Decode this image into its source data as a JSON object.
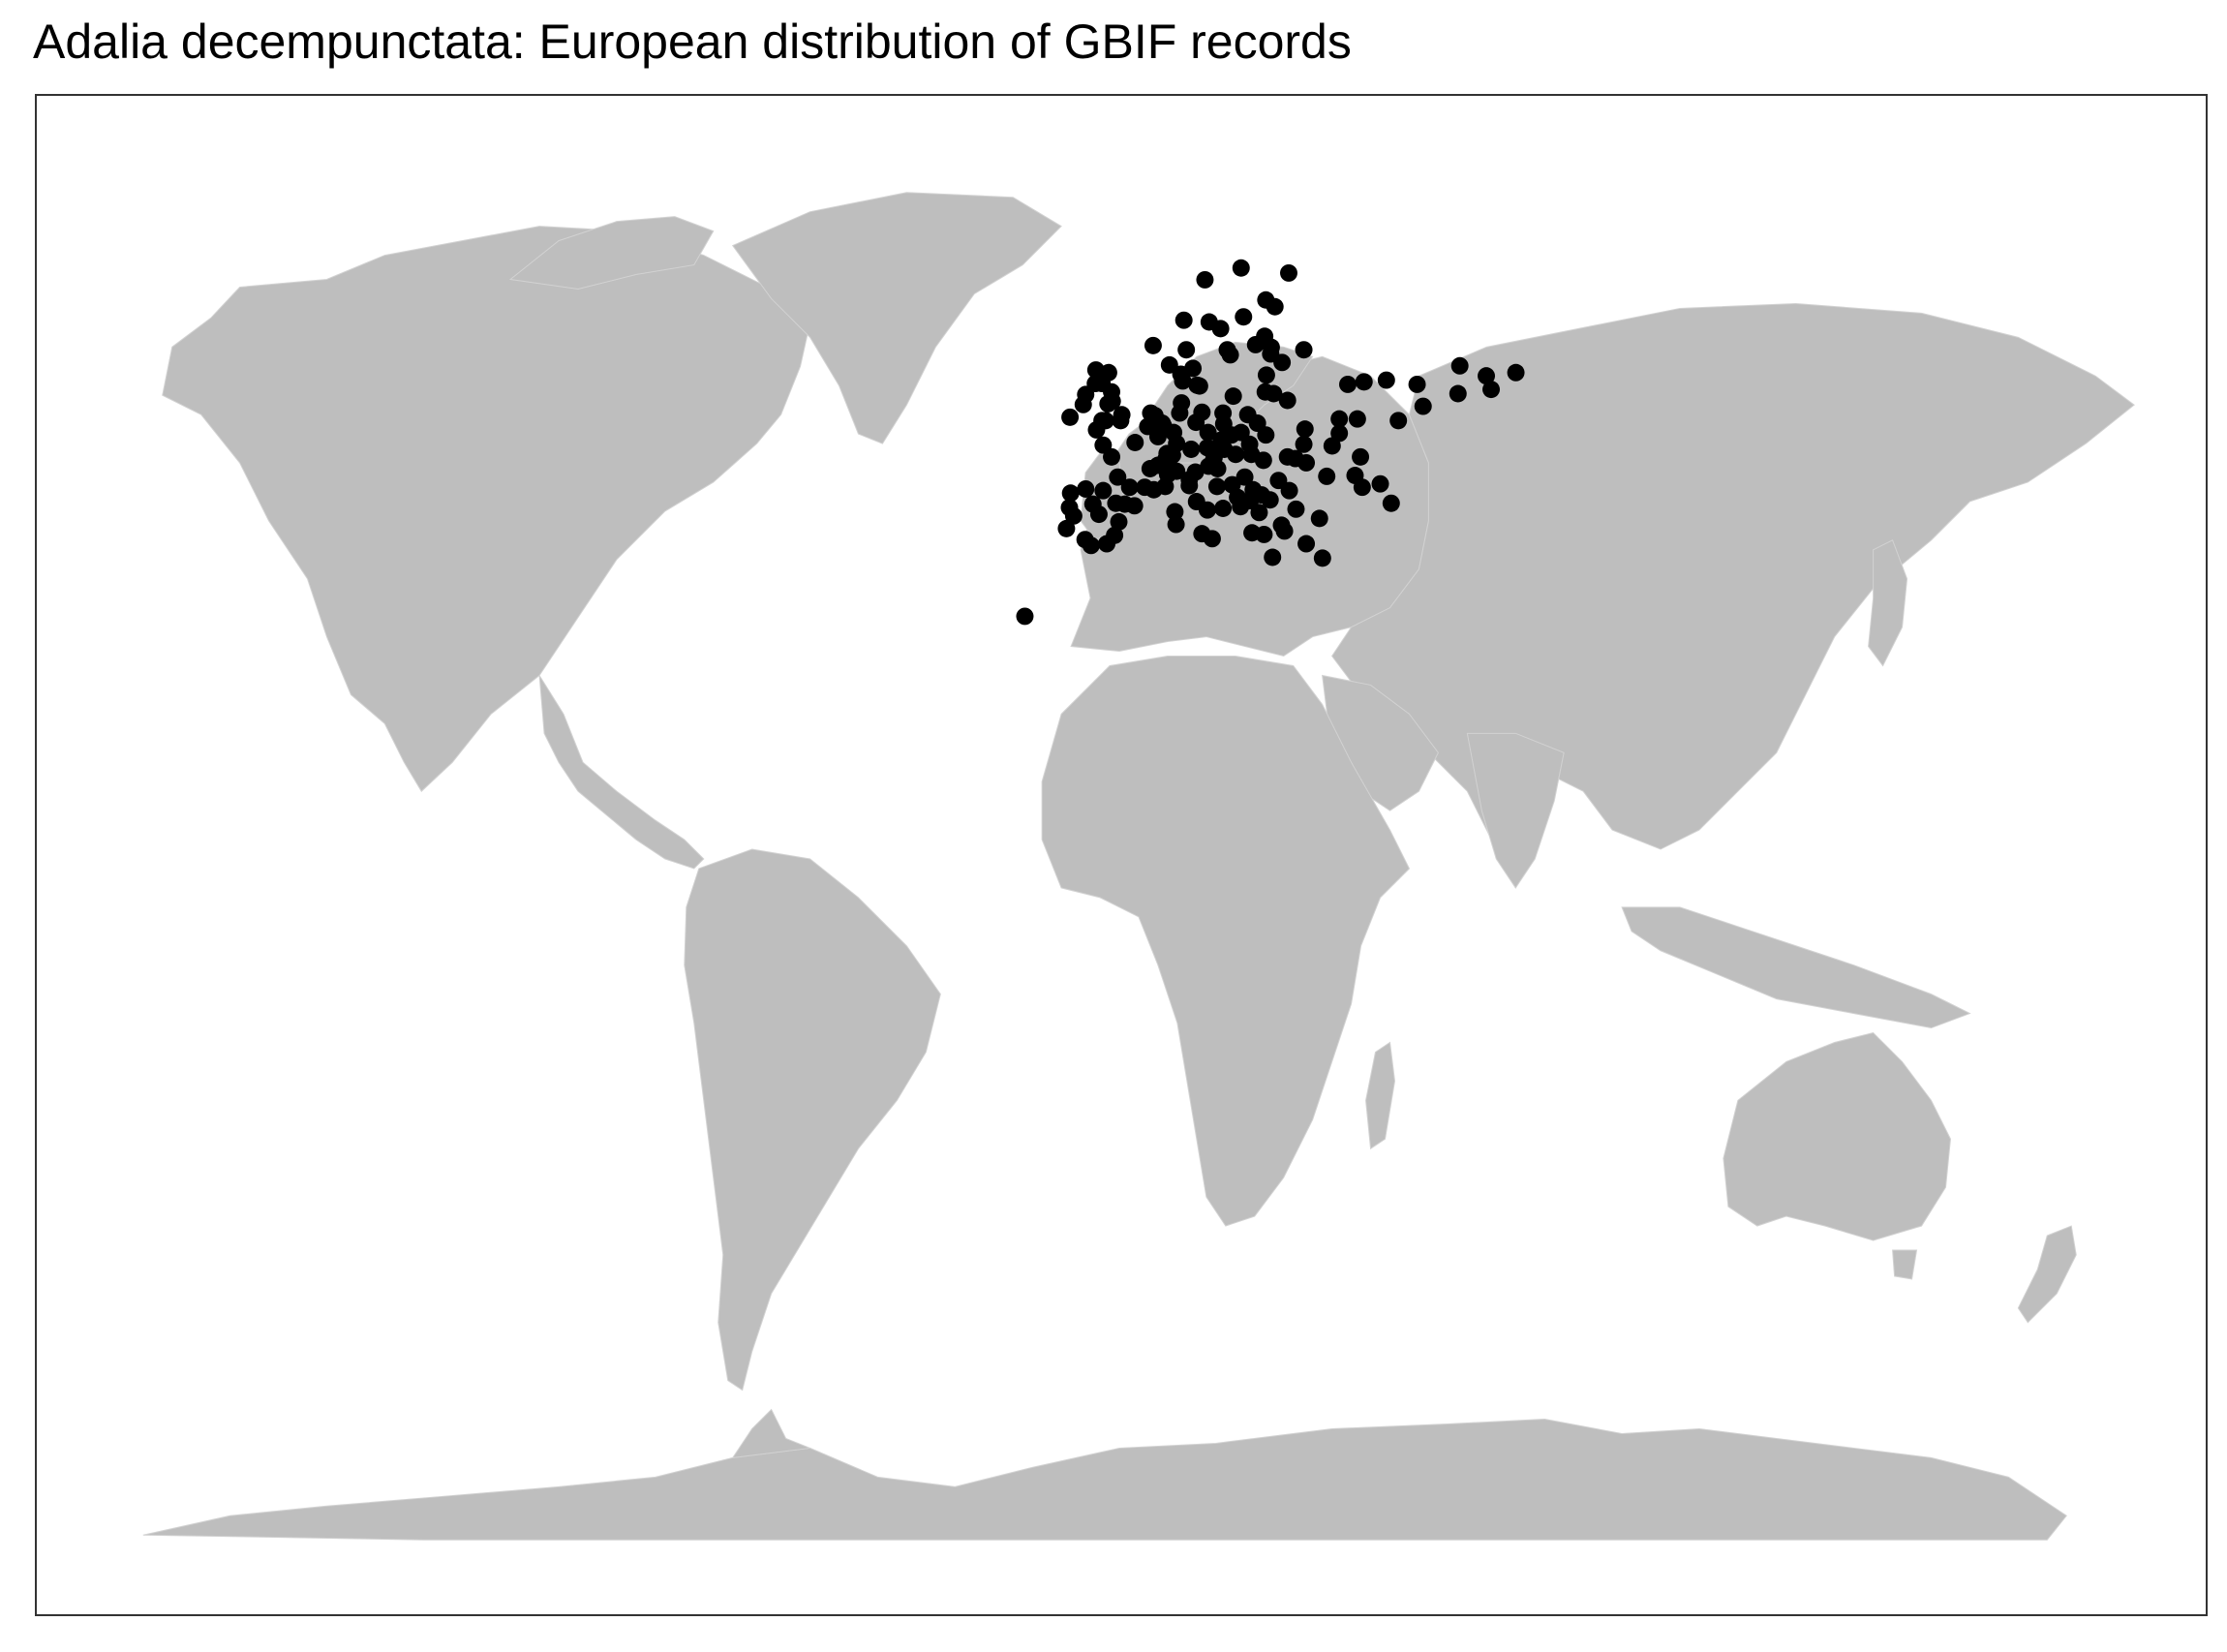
{
  "title": "Adalia decempunctata: European distribution of GBIF records",
  "map": {
    "projection": "equirectangular",
    "extent": {
      "lon": [
        -180,
        180
      ],
      "lat": [
        -90,
        90
      ]
    },
    "land_color": "#bebebe",
    "point_color": "#000000",
    "background": "#ffffff",
    "border_color": "#333333",
    "grid": false,
    "legend": "none"
  },
  "records": [
    [
      -9.1,
      38.7
    ],
    [
      -8.6,
      41.2
    ],
    [
      -8.4,
      42.9
    ],
    [
      -7.9,
      40.2
    ],
    [
      -6.0,
      37.4
    ],
    [
      -5.9,
      43.4
    ],
    [
      -5.0,
      36.7
    ],
    [
      -4.7,
      41.6
    ],
    [
      -3.7,
      40.4
    ],
    [
      -3.0,
      43.2
    ],
    [
      -2.4,
      36.9
    ],
    [
      -1.1,
      37.9
    ],
    [
      -0.4,
      39.5
    ],
    [
      -0.9,
      41.7
    ],
    [
      0.6,
      41.6
    ],
    [
      2.2,
      41.4
    ],
    [
      1.4,
      43.6
    ],
    [
      -0.6,
      44.8
    ],
    [
      -1.6,
      47.2
    ],
    [
      2.3,
      48.9
    ],
    [
      4.8,
      45.8
    ],
    [
      5.4,
      43.3
    ],
    [
      7.3,
      43.7
    ],
    [
      3.9,
      43.6
    ],
    [
      -3.2,
      55.9
    ],
    [
      -4.3,
      55.9
    ],
    [
      -1.5,
      53.8
    ],
    [
      -2.2,
      53.5
    ],
    [
      -0.1,
      51.5
    ],
    [
      -3.2,
      51.5
    ],
    [
      -6.3,
      53.4
    ],
    [
      -8.5,
      51.9
    ],
    [
      -5.9,
      54.6
    ],
    [
      -1.6,
      54.9
    ],
    [
      0.1,
      52.2
    ],
    [
      -2.6,
      51.5
    ],
    [
      -4.1,
      50.4
    ],
    [
      -4.2,
      57.5
    ],
    [
      -2.1,
      57.2
    ],
    [
      4.9,
      52.4
    ],
    [
      4.4,
      50.8
    ],
    [
      5.6,
      52.1
    ],
    [
      6.1,
      49.6
    ],
    [
      6.8,
      51.2
    ],
    [
      7.0,
      50.9
    ],
    [
      8.7,
      50.1
    ],
    [
      9.2,
      48.8
    ],
    [
      11.6,
      48.1
    ],
    [
      13.4,
      52.5
    ],
    [
      10.0,
      53.6
    ],
    [
      12.4,
      51.3
    ],
    [
      9.7,
      52.4
    ],
    [
      7.6,
      47.6
    ],
    [
      8.5,
      47.4
    ],
    [
      6.1,
      46.2
    ],
    [
      7.4,
      46.9
    ],
    [
      9.2,
      45.5
    ],
    [
      11.3,
      44.5
    ],
    [
      7.7,
      45.1
    ],
    [
      12.3,
      45.4
    ],
    [
      11.3,
      43.8
    ],
    [
      12.5,
      41.9
    ],
    [
      14.3,
      40.9
    ],
    [
      16.9,
      41.1
    ],
    [
      15.1,
      37.5
    ],
    [
      13.4,
      38.1
    ],
    [
      9.1,
      39.2
    ],
    [
      8.9,
      40.7
    ],
    [
      16.4,
      48.2
    ],
    [
      14.3,
      48.3
    ],
    [
      15.4,
      47.1
    ],
    [
      14.5,
      46.1
    ],
    [
      16.0,
      45.8
    ],
    [
      19.0,
      47.5
    ],
    [
      21.6,
      47.5
    ],
    [
      14.4,
      50.1
    ],
    [
      16.6,
      49.2
    ],
    [
      18.3,
      49.8
    ],
    [
      17.1,
      48.1
    ],
    [
      21.3,
      48.7
    ],
    [
      21.0,
      52.2
    ],
    [
      19.9,
      50.1
    ],
    [
      17.0,
      51.1
    ],
    [
      16.9,
      52.4
    ],
    [
      18.6,
      54.4
    ],
    [
      22.6,
      51.2
    ],
    [
      12.6,
      55.7
    ],
    [
      10.2,
      56.2
    ],
    [
      9.9,
      57.0
    ],
    [
      18.1,
      59.3
    ],
    [
      11.9,
      57.7
    ],
    [
      13.0,
      55.6
    ],
    [
      17.6,
      59.9
    ],
    [
      16.5,
      62.4
    ],
    [
      14.6,
      63.2
    ],
    [
      20.3,
      63.8
    ],
    [
      10.8,
      59.9
    ],
    [
      5.3,
      60.4
    ],
    [
      10.4,
      63.4
    ],
    [
      8.0,
      58.1
    ],
    [
      24.9,
      60.2
    ],
    [
      22.3,
      60.5
    ],
    [
      23.8,
      61.5
    ],
    [
      25.5,
      65.0
    ],
    [
      24.1,
      56.9
    ],
    [
      25.3,
      54.7
    ],
    [
      23.9,
      54.9
    ],
    [
      24.8,
      59.4
    ],
    [
      26.7,
      58.4
    ],
    [
      27.6,
      53.9
    ],
    [
      30.5,
      50.5
    ],
    [
      24.0,
      49.8
    ],
    [
      35.0,
      48.5
    ],
    [
      36.2,
      50.0
    ],
    [
      30.7,
      46.5
    ],
    [
      28.9,
      47.0
    ],
    [
      26.1,
      44.4
    ],
    [
      23.6,
      46.8
    ],
    [
      27.6,
      47.2
    ],
    [
      20.5,
      44.8
    ],
    [
      21.9,
      43.3
    ],
    [
      18.4,
      43.9
    ],
    [
      15.9,
      43.7
    ],
    [
      19.3,
      42.4
    ],
    [
      19.8,
      41.3
    ],
    [
      21.4,
      42.0
    ],
    [
      23.3,
      42.7
    ],
    [
      24.7,
      42.1
    ],
    [
      27.9,
      43.2
    ],
    [
      22.9,
      40.6
    ],
    [
      23.7,
      38.0
    ],
    [
      21.7,
      38.2
    ],
    [
      25.1,
      35.3
    ],
    [
      26.6,
      39.1
    ],
    [
      29.0,
      41.0
    ],
    [
      32.9,
      39.9
    ],
    [
      27.1,
      38.4
    ],
    [
      30.7,
      36.9
    ],
    [
      33.4,
      35.2
    ],
    [
      37.6,
      55.8
    ],
    [
      30.3,
      59.9
    ],
    [
      39.7,
      47.2
    ],
    [
      40.3,
      56.1
    ],
    [
      44.0,
      56.3
    ],
    [
      49.1,
      55.8
    ],
    [
      50.1,
      53.2
    ],
    [
      56.2,
      58.0
    ],
    [
      60.6,
      56.8
    ],
    [
      61.4,
      55.2
    ],
    [
      55.9,
      54.7
    ],
    [
      65.5,
      57.2
    ],
    [
      46.0,
      51.5
    ],
    [
      39.2,
      51.7
    ],
    [
      36.2,
      51.7
    ],
    [
      43.0,
      44.0
    ],
    [
      40.0,
      43.6
    ],
    [
      38.8,
      45.0
    ],
    [
      44.8,
      41.7
    ],
    [
      30.3,
      48.7
    ],
    [
      34.1,
      44.9
    ],
    [
      -16.0,
      28.3
    ],
    [
      -3.0,
      48.6
    ],
    [
      24.0,
      65.8
    ],
    [
      27.8,
      69.0
    ],
    [
      19.9,
      69.6
    ],
    [
      13.9,
      68.2
    ]
  ]
}
